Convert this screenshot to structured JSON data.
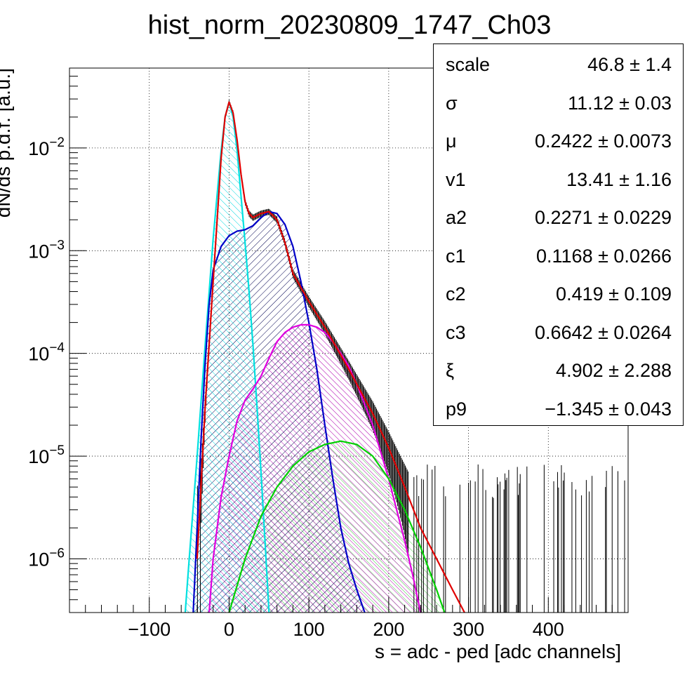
{
  "chart_data": {
    "type": "line",
    "title": "hist_norm_20230809_1747_Ch03",
    "xlabel": "s = adc - ped [adc channels]",
    "ylabel": "dN/ds p.d.f. [a.u.]",
    "xlim": [
      -200,
      500
    ],
    "ylim": [
      3e-07,
      0.06
    ],
    "yscale": "log",
    "grid": true,
    "legend": "none",
    "x_ticks": [
      -100,
      0,
      100,
      200,
      300,
      400
    ],
    "y_ticks": [
      {
        "value": 1e-06,
        "base": "10",
        "exp": "−6"
      },
      {
        "value": 1e-05,
        "base": "10",
        "exp": "−5"
      },
      {
        "value": 0.0001,
        "base": "10",
        "exp": "−4"
      },
      {
        "value": 0.001,
        "base": "10",
        "exp": "−3"
      },
      {
        "value": 0.01,
        "base": "10",
        "exp": "−2"
      }
    ],
    "series": [
      {
        "color": "#e00000",
        "role": "total-fit",
        "x": [
          -40,
          -30,
          -20,
          -10,
          -5,
          0,
          5,
          10,
          15,
          20,
          25,
          30,
          35,
          40,
          50,
          60,
          70,
          80,
          100,
          120,
          150,
          180,
          200,
          220,
          240,
          260,
          280,
          295
        ],
        "y": [
          1e-06,
          3e-05,
          0.0005,
          0.008,
          0.02,
          0.028,
          0.022,
          0.012,
          0.0055,
          0.003,
          0.0023,
          0.0021,
          0.0022,
          0.0023,
          0.0024,
          0.002,
          0.0012,
          0.0006,
          0.00032,
          0.00018,
          7e-05,
          2.6e-05,
          1.2e-05,
          5e-06,
          2e-06,
          1e-06,
          5e-07,
          3e-07
        ]
      },
      {
        "color": "#00e0e0",
        "role": "pedestal",
        "x": [
          -55,
          -50,
          -40,
          -30,
          -20,
          -10,
          -5,
          0,
          5,
          10,
          20,
          25,
          30,
          35,
          40,
          45,
          50
        ],
        "y": [
          3e-07,
          1e-06,
          1e-05,
          0.00012,
          0.0013,
          0.0095,
          0.02,
          0.028,
          0.02,
          0.0095,
          0.0012,
          0.0004,
          0.00012,
          3e-05,
          7e-06,
          1.5e-06,
          3e-07
        ]
      },
      {
        "color": "#0000c8",
        "role": "component-1",
        "x": [
          -45,
          -40,
          -35,
          -30,
          -25,
          -20,
          -10,
          0,
          10,
          20,
          30,
          40,
          50,
          60,
          70,
          80,
          90,
          100,
          110,
          120,
          130,
          140,
          150,
          160,
          170
        ],
        "y": [
          3e-07,
          2e-06,
          1.5e-05,
          8e-05,
          0.0003,
          0.00065,
          0.0011,
          0.0014,
          0.00155,
          0.0016,
          0.00175,
          0.0021,
          0.0024,
          0.0023,
          0.0018,
          0.0011,
          0.0005,
          0.0002,
          7e-05,
          2e-05,
          6e-06,
          2e-06,
          9e-07,
          5e-07,
          3e-07
        ]
      },
      {
        "color": "#e000e0",
        "role": "component-2",
        "x": [
          -25,
          -20,
          -10,
          0,
          10,
          20,
          30,
          40,
          50,
          60,
          70,
          80,
          90,
          100,
          110,
          120,
          130,
          140,
          150,
          160,
          180,
          200,
          210,
          220,
          230,
          240
        ],
        "y": [
          3e-07,
          1e-06,
          4e-06,
          1e-05,
          2.2e-05,
          3.5e-05,
          4.5e-05,
          6e-05,
          9e-05,
          0.00013,
          0.00016,
          0.00018,
          0.00019,
          0.00019,
          0.00018,
          0.00016,
          0.00013,
          0.0001,
          7.5e-05,
          5e-05,
          2e-05,
          6e-06,
          3e-06,
          1.5e-06,
          7e-07,
          3e-07
        ]
      },
      {
        "color": "#00d000",
        "role": "component-3",
        "x": [
          0,
          20,
          40,
          60,
          80,
          100,
          120,
          140,
          160,
          180,
          200,
          220,
          240,
          260,
          270
        ],
        "y": [
          3e-07,
          1e-06,
          2.6e-06,
          5e-06,
          8e-06,
          1.1e-05,
          1.3e-05,
          1.4e-05,
          1.3e-05,
          1e-05,
          6e-06,
          3e-06,
          1.3e-06,
          5e-07,
          3e-07
        ]
      }
    ]
  },
  "stats": [
    {
      "name": "scale",
      "value": "46.8 ± 1.4"
    },
    {
      "name": "σ",
      "value": "11.12 ± 0.03"
    },
    {
      "name": "μ",
      "value": "0.2422 ± 0.0073"
    },
    {
      "name": "v1",
      "value": "13.41 ± 1.16"
    },
    {
      "name": "a2",
      "value": "0.2271 ± 0.0229"
    },
    {
      "name": "c1",
      "value": "0.1168 ± 0.0266"
    },
    {
      "name": "c2",
      "value": "0.419 ± 0.109"
    },
    {
      "name": "c3",
      "value": "0.6642 ± 0.0264"
    },
    {
      "name": "ξ",
      "value": "4.902 ± 2.288"
    },
    {
      "name": "p9",
      "value": "−1.345 ± 0.043"
    }
  ]
}
